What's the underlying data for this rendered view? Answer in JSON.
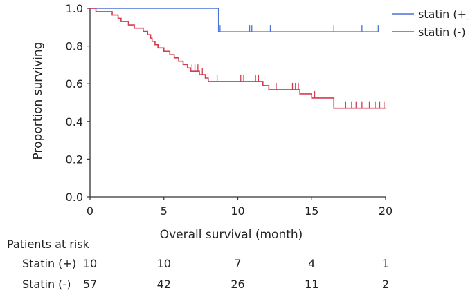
{
  "chart_data": {
    "type": "line",
    "title": "",
    "xlabel": "Overall survival (month)",
    "ylabel": "Proportion surviving",
    "xlim": [
      0,
      20
    ],
    "ylim": [
      0.0,
      1.0
    ],
    "x_ticks": [
      0,
      5,
      10,
      15,
      20
    ],
    "y_ticks": [
      0.0,
      0.2,
      0.4,
      0.6,
      0.8,
      1.0
    ],
    "x_tick_labels": [
      "0",
      "5",
      "10",
      "15",
      "20"
    ],
    "y_tick_labels": [
      "0.0",
      "0.2",
      "0.4",
      "0.6",
      "0.8",
      "1.0"
    ],
    "grid": false,
    "legend_position": "top-right",
    "series": [
      {
        "name": "statin (+)",
        "color": "#4a72d8",
        "steps": [
          [
            0,
            1.0
          ],
          [
            8.7,
            0.875
          ],
          [
            19.5,
            0.875
          ]
        ],
        "censored": [
          8.8,
          10.8,
          10.95,
          12.2,
          16.5,
          18.4,
          19.5
        ]
      },
      {
        "name": "statin (-)",
        "color": "#d63a4e",
        "steps": [
          [
            0,
            1.0
          ],
          [
            0.4,
            0.982
          ],
          [
            1.5,
            0.965
          ],
          [
            1.9,
            0.947
          ],
          [
            2.1,
            0.93
          ],
          [
            2.6,
            0.912
          ],
          [
            3.0,
            0.895
          ],
          [
            3.6,
            0.877
          ],
          [
            3.9,
            0.86
          ],
          [
            4.1,
            0.842
          ],
          [
            4.2,
            0.825
          ],
          [
            4.4,
            0.807
          ],
          [
            4.6,
            0.79
          ],
          [
            5.0,
            0.772
          ],
          [
            5.4,
            0.754
          ],
          [
            5.7,
            0.737
          ],
          [
            6.0,
            0.719
          ],
          [
            6.3,
            0.702
          ],
          [
            6.6,
            0.684
          ],
          [
            6.8,
            0.666
          ],
          [
            7.4,
            0.648
          ],
          [
            7.8,
            0.63
          ],
          [
            8.0,
            0.612
          ],
          [
            8.1,
            0.612
          ],
          [
            11.0,
            0.612
          ],
          [
            11.7,
            0.59
          ],
          [
            12.1,
            0.568
          ],
          [
            13.5,
            0.568
          ],
          [
            14.2,
            0.546
          ],
          [
            15.0,
            0.524
          ],
          [
            16.5,
            0.47
          ],
          [
            20.0,
            0.47
          ]
        ],
        "censored": [
          6.9,
          7.1,
          7.3,
          7.6,
          8.6,
          10.2,
          10.4,
          11.2,
          11.4,
          12.6,
          13.7,
          13.9,
          14.1,
          15.2,
          17.3,
          17.7,
          18.0,
          18.4,
          18.9,
          19.3,
          19.6,
          19.9
        ]
      }
    ],
    "risk_table": {
      "title": "Patients at risk",
      "times": [
        0,
        5,
        10,
        15,
        20
      ],
      "rows": [
        {
          "label": "Statin (+)",
          "counts": [
            "10",
            "10",
            "7",
            "4",
            "1"
          ]
        },
        {
          "label": "Statin (-)",
          "counts": [
            "57",
            "42",
            "26",
            "11",
            "2"
          ]
        }
      ]
    }
  }
}
